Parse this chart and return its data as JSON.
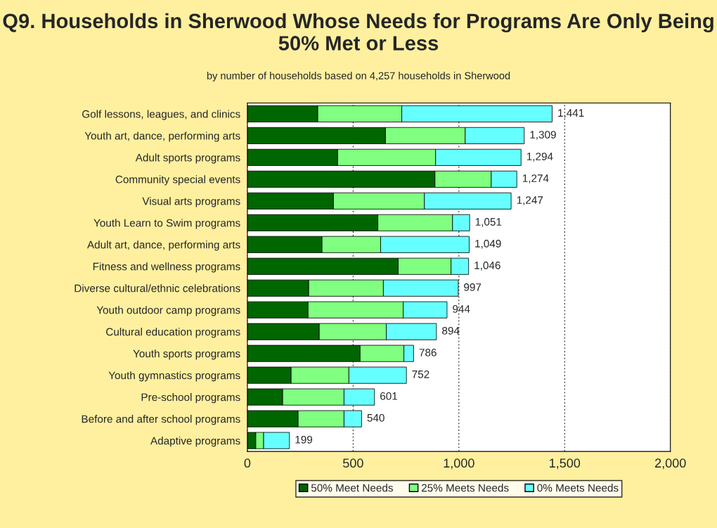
{
  "chart_data": {
    "type": "bar",
    "orientation": "horizontal",
    "stacked": true,
    "title": "Q9. Households in Sherwood Whose Needs for Programs Are Only Being 50% Met or Less",
    "subtitle": "by number of households based on 4,257 households in Sherwood",
    "categories": [
      "Golf lessons, leagues, and clinics",
      "Youth art, dance, performing arts",
      "Adult sports programs",
      "Community special events",
      "Visual arts programs",
      "Youth Learn to Swim programs",
      "Adult art, dance, performing arts",
      "Fitness and wellness programs",
      "Diverse cultural/ethnic celebrations",
      "Youth outdoor camp programs",
      "Cultural education programs",
      "Youth sports programs",
      "Youth gymnastics programs",
      "Pre-school programs",
      "Before and after school programs",
      "Adaptive programs"
    ],
    "series": [
      {
        "name": "50% Meet Needs",
        "color": "#006600",
        "values": [
          333,
          653,
          427,
          887,
          407,
          617,
          353,
          713,
          290,
          287,
          340,
          533,
          207,
          167,
          240,
          40
        ]
      },
      {
        "name": "25% Meets Needs",
        "color": "#80ff80",
        "values": [
          397,
          377,
          463,
          266,
          430,
          353,
          277,
          250,
          353,
          450,
          317,
          207,
          273,
          290,
          217,
          37
        ]
      },
      {
        "name": "0% Meets Needs",
        "color": "#66ffff",
        "values": [
          711,
          279,
          404,
          121,
          410,
          81,
          419,
          83,
          354,
          207,
          237,
          46,
          272,
          144,
          83,
          122
        ]
      }
    ],
    "totals": [
      "1,441",
      "1,309",
      "1,294",
      "1,274",
      "1,247",
      "1,051",
      "1,049",
      "1,046",
      "997",
      "944",
      "894",
      "786",
      "752",
      "601",
      "540",
      "199"
    ],
    "xlim": [
      0,
      2000
    ],
    "xticks": [
      {
        "value": 0,
        "label": "0"
      },
      {
        "value": 500,
        "label": "500"
      },
      {
        "value": 1000,
        "label": "1,000"
      },
      {
        "value": 1500,
        "label": "1,500"
      },
      {
        "value": 2000,
        "label": "2,000"
      }
    ],
    "grid": "x",
    "legend": "bottom"
  }
}
